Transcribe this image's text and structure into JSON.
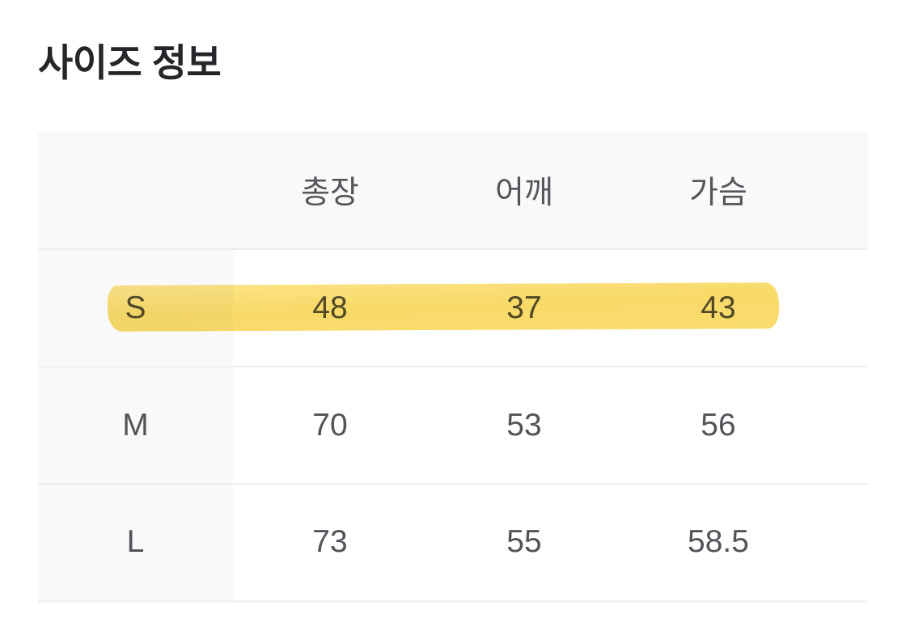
{
  "page": {
    "title": "사이즈 정보"
  },
  "table": {
    "columns": [
      "총장",
      "어깨",
      "가슴"
    ],
    "rows": [
      {
        "size": "S",
        "values": [
          "48",
          "37",
          "43"
        ],
        "highlighted": true
      },
      {
        "size": "M",
        "values": [
          "70",
          "53",
          "56"
        ],
        "highlighted": false
      },
      {
        "size": "L",
        "values": [
          "73",
          "55",
          "58.5"
        ],
        "highlighted": false
      }
    ],
    "highlight": {
      "row": "S",
      "style": "marker-pen",
      "color": "#f8da68"
    },
    "colors": {
      "header_bg": "#f9f9f9",
      "size_column_bg": "#f9f9f9",
      "divider": "#ededed",
      "text": "#54555a",
      "title_text": "#26262a"
    }
  }
}
